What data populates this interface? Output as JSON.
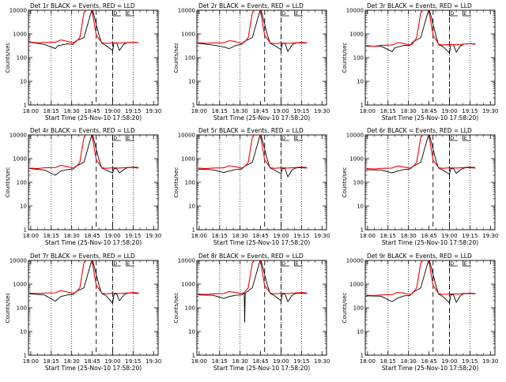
{
  "chart_data": [
    {
      "type": "line",
      "title": "Det 1r BLACK = Events, RED = LLD",
      "xlabel": "Start Time (25-Nov-10 17:58:20)",
      "ylabel": "Counts/sec",
      "yscale": "log",
      "ylim": [
        1,
        10000
      ],
      "x_ticks": [
        "18:00",
        "18:15",
        "18:30",
        "18:45",
        "19:00",
        "19:15",
        "19:30"
      ],
      "y_ticks": [
        "1",
        "10",
        "100",
        "1000",
        "10000"
      ],
      "flag_labels": [
        "D",
        "E"
      ],
      "series": [
        {
          "name": "Events",
          "color": "#000000",
          "x": [
            -1,
            10,
            18,
            20,
            27,
            31,
            33,
            39,
            45,
            50,
            52,
            55,
            60,
            61,
            63,
            65,
            68,
            70,
            72,
            75,
            79
          ],
          "y": [
            450,
            360,
            240,
            320,
            380,
            360,
            500,
            700,
            12000,
            900,
            400,
            330,
            200,
            420,
            420,
            200,
            360,
            420,
            440,
            440,
            430
          ]
        },
        {
          "name": "LLD",
          "color": "#ff0000",
          "x": [
            -1,
            5,
            10,
            18,
            22,
            26,
            31,
            33,
            36,
            39,
            42,
            45,
            48,
            52,
            55,
            60,
            65,
            70,
            75,
            79
          ],
          "y": [
            460,
            420,
            440,
            440,
            560,
            500,
            420,
            460,
            700,
            8000,
            14000,
            9000,
            900,
            430,
            400,
            420,
            410,
            430,
            450,
            430
          ]
        }
      ]
    },
    {
      "type": "line",
      "title": "Det 2r BLACK = Events, RED = LLD",
      "xlabel": "Start Time (25-Nov-10 17:58:20)",
      "ylabel": "Counts/sec",
      "yscale": "log",
      "ylim": [
        1,
        10000
      ],
      "x_ticks": [
        "18:00",
        "18:15",
        "18:30",
        "18:45",
        "19:00",
        "19:15",
        "19:30"
      ],
      "y_ticks": [
        "1",
        "10",
        "100",
        "1000",
        "10000"
      ],
      "flag_labels": [
        "D",
        "E"
      ],
      "series": [
        {
          "name": "Events",
          "color": "#000000",
          "x": [
            -1,
            10,
            18,
            22,
            27,
            31,
            33,
            39,
            45,
            50,
            52,
            55,
            60,
            61,
            63,
            65,
            68,
            70,
            72,
            75,
            79
          ],
          "y": [
            400,
            340,
            280,
            240,
            330,
            360,
            480,
            700,
            12000,
            900,
            400,
            330,
            220,
            400,
            400,
            180,
            340,
            400,
            420,
            420,
            410
          ]
        },
        {
          "name": "LLD",
          "color": "#ff0000",
          "x": [
            -1,
            5,
            10,
            18,
            22,
            26,
            31,
            33,
            36,
            39,
            42,
            45,
            48,
            52,
            55,
            60,
            65,
            70,
            75,
            79
          ],
          "y": [
            430,
            400,
            420,
            420,
            520,
            480,
            400,
            440,
            700,
            8000,
            14000,
            9000,
            900,
            420,
            390,
            410,
            400,
            420,
            440,
            420
          ]
        }
      ]
    },
    {
      "type": "line",
      "title": "Det 3r BLACK = Events, RED = LLD",
      "xlabel": "Start Time (25-Nov-10 17:58:20)",
      "ylabel": "Counts/sec",
      "yscale": "log",
      "ylim": [
        1,
        10000
      ],
      "x_ticks": [
        "18:00",
        "18:15",
        "18:30",
        "18:45",
        "19:00",
        "19:15",
        "19:30"
      ],
      "y_ticks": [
        "1",
        "10",
        "100",
        "1000",
        "10000"
      ],
      "flag_labels": [
        "D",
        "E"
      ],
      "series": [
        {
          "name": "Events",
          "color": "#000000",
          "x": [
            -1,
            10,
            18,
            20,
            27,
            31,
            33,
            39,
            45,
            50,
            52,
            55,
            60,
            61,
            63,
            65,
            68,
            70,
            72,
            75,
            79
          ],
          "y": [
            300,
            300,
            180,
            260,
            330,
            320,
            450,
            700,
            12000,
            900,
            350,
            300,
            160,
            350,
            350,
            170,
            310,
            360,
            380,
            380,
            370
          ]
        },
        {
          "name": "LLD",
          "color": "#ff0000",
          "x": [
            -1,
            5,
            10,
            18,
            22,
            26,
            31,
            33,
            36,
            39,
            42,
            45,
            48,
            52,
            55,
            60,
            65,
            70,
            75,
            79
          ],
          "y": [
            320,
            300,
            330,
            340,
            430,
            400,
            340,
            380,
            700,
            8000,
            14000,
            9000,
            900,
            370,
            340,
            360,
            350,
            370,
            390,
            380
          ]
        }
      ]
    },
    {
      "type": "line",
      "title": "Det 4r BLACK = Events, RED = LLD",
      "xlabel": "Start Time (25-Nov-10 17:58:20)",
      "ylabel": "Counts/sec",
      "yscale": "log",
      "ylim": [
        1,
        10000
      ],
      "x_ticks": [
        "18:00",
        "18:15",
        "18:30",
        "18:45",
        "19:00",
        "19:15",
        "19:30"
      ],
      "y_ticks": [
        "1",
        "10",
        "100",
        "1000",
        "10000"
      ],
      "flag_labels": [
        "D",
        "E"
      ],
      "series": [
        {
          "name": "Events",
          "color": "#000000",
          "x": [
            -1,
            10,
            18,
            22,
            27,
            31,
            33,
            39,
            45,
            50,
            52,
            55,
            60,
            61,
            63,
            65,
            68,
            70,
            72,
            75,
            79
          ],
          "y": [
            380,
            330,
            200,
            300,
            350,
            360,
            480,
            700,
            12000,
            900,
            400,
            330,
            250,
            380,
            380,
            250,
            340,
            400,
            420,
            420,
            400
          ]
        },
        {
          "name": "LLD",
          "color": "#ff0000",
          "x": [
            -1,
            5,
            10,
            18,
            22,
            26,
            31,
            33,
            36,
            39,
            42,
            45,
            48,
            52,
            55,
            60,
            65,
            70,
            75,
            79
          ],
          "y": [
            400,
            380,
            410,
            420,
            520,
            470,
            400,
            440,
            700,
            8000,
            14000,
            9000,
            900,
            420,
            390,
            410,
            400,
            420,
            440,
            420
          ]
        }
      ]
    },
    {
      "type": "line",
      "title": "Det 5r BLACK = Events, RED = LLD",
      "xlabel": "Start Time (25-Nov-10 17:58:20)",
      "ylabel": "Counts/sec",
      "yscale": "log",
      "ylim": [
        1,
        10000
      ],
      "x_ticks": [
        "18:00",
        "18:15",
        "18:30",
        "18:45",
        "19:00",
        "19:15",
        "19:30"
      ],
      "y_ticks": [
        "1",
        "10",
        "100",
        "1000",
        "10000"
      ],
      "flag_labels": [
        "D",
        "E"
      ],
      "series": [
        {
          "name": "Events",
          "color": "#000000",
          "x": [
            -1,
            10,
            18,
            22,
            27,
            31,
            33,
            39,
            45,
            50,
            52,
            55,
            60,
            61,
            63,
            65,
            68,
            70,
            72,
            75,
            79
          ],
          "y": [
            360,
            340,
            260,
            300,
            350,
            360,
            460,
            700,
            12000,
            900,
            400,
            330,
            230,
            380,
            380,
            170,
            330,
            390,
            410,
            410,
            400
          ]
        },
        {
          "name": "LLD",
          "color": "#ff0000",
          "x": [
            -1,
            5,
            10,
            18,
            22,
            26,
            31,
            33,
            36,
            39,
            42,
            45,
            48,
            52,
            55,
            60,
            65,
            70,
            75,
            79
          ],
          "y": [
            400,
            380,
            400,
            410,
            500,
            460,
            400,
            440,
            700,
            8000,
            14000,
            9000,
            900,
            420,
            390,
            410,
            400,
            420,
            440,
            420
          ]
        }
      ]
    },
    {
      "type": "line",
      "title": "Det 6r BLACK = Events, RED = LLD",
      "xlabel": "Start Time (25-Nov-10 17:58:20)",
      "ylabel": "Counts/sec",
      "yscale": "log",
      "ylim": [
        1,
        10000
      ],
      "x_ticks": [
        "18:00",
        "18:15",
        "18:30",
        "18:45",
        "19:00",
        "19:15",
        "19:30"
      ],
      "y_ticks": [
        "1",
        "10",
        "100",
        "1000",
        "10000"
      ],
      "flag_labels": [
        "D",
        "E"
      ],
      "series": [
        {
          "name": "Events",
          "color": "#000000",
          "x": [
            -1,
            10,
            18,
            22,
            27,
            31,
            33,
            39,
            45,
            50,
            52,
            55,
            60,
            61,
            63,
            65,
            68,
            70,
            72,
            75,
            79
          ],
          "y": [
            340,
            330,
            250,
            300,
            350,
            360,
            460,
            700,
            12000,
            900,
            400,
            330,
            220,
            380,
            380,
            240,
            340,
            390,
            410,
            410,
            400
          ]
        },
        {
          "name": "LLD",
          "color": "#ff0000",
          "x": [
            -1,
            5,
            10,
            18,
            22,
            26,
            31,
            33,
            36,
            39,
            42,
            45,
            48,
            52,
            55,
            60,
            65,
            70,
            75,
            79
          ],
          "y": [
            380,
            370,
            390,
            400,
            490,
            450,
            400,
            440,
            700,
            8000,
            14000,
            9000,
            900,
            420,
            390,
            410,
            400,
            420,
            440,
            420
          ]
        }
      ]
    },
    {
      "type": "line",
      "title": "Det 7r BLACK = Events, RED = LLD",
      "xlabel": "Start Time (25-Nov-10 17:58:20)",
      "ylabel": "Counts/sec",
      "yscale": "log",
      "ylim": [
        1,
        10000
      ],
      "x_ticks": [
        "18:00",
        "18:15",
        "18:30",
        "18:45",
        "19:00",
        "19:15",
        "19:30"
      ],
      "y_ticks": [
        "1",
        "10",
        "100",
        "1000",
        "10000"
      ],
      "flag_labels": [
        "D",
        "E"
      ],
      "series": [
        {
          "name": "Events",
          "color": "#000000",
          "x": [
            -1,
            10,
            18,
            22,
            27,
            31,
            33,
            39,
            45,
            50,
            52,
            55,
            60,
            61,
            63,
            65,
            68,
            70,
            72,
            75,
            79
          ],
          "y": [
            390,
            350,
            190,
            300,
            350,
            360,
            480,
            700,
            12000,
            900,
            400,
            330,
            160,
            380,
            380,
            200,
            340,
            400,
            420,
            420,
            400
          ]
        },
        {
          "name": "LLD",
          "color": "#ff0000",
          "x": [
            -1,
            5,
            10,
            18,
            22,
            26,
            31,
            33,
            36,
            39,
            42,
            45,
            48,
            52,
            55,
            60,
            65,
            70,
            75,
            79
          ],
          "y": [
            420,
            400,
            420,
            430,
            530,
            480,
            410,
            450,
            700,
            8000,
            14000,
            9000,
            900,
            420,
            390,
            410,
            400,
            420,
            440,
            420
          ]
        }
      ]
    },
    {
      "type": "line",
      "title": "Det 8r BLACK = Events, RED = LLD",
      "xlabel": "Start Time (25-Nov-10 17:58:20)",
      "ylabel": "Counts/sec",
      "yscale": "log",
      "ylim": [
        1,
        10000
      ],
      "x_ticks": [
        "18:00",
        "18:15",
        "18:30",
        "18:45",
        "19:00",
        "19:15",
        "19:30"
      ],
      "y_ticks": [
        "1",
        "10",
        "100",
        "1000",
        "10000"
      ],
      "flag_labels": [
        "D",
        "E"
      ],
      "series": [
        {
          "name": "Events",
          "color": "#000000",
          "x": [
            -1,
            10,
            18,
            22,
            27,
            31,
            33,
            33.4,
            33.8,
            39,
            45,
            50,
            52,
            55,
            60,
            61,
            63,
            65,
            68,
            70,
            72,
            75,
            79
          ],
          "y": [
            350,
            340,
            250,
            300,
            340,
            350,
            420,
            25,
            420,
            700,
            12000,
            900,
            400,
            330,
            200,
            380,
            380,
            180,
            330,
            390,
            410,
            410,
            400
          ]
        },
        {
          "name": "LLD",
          "color": "#ff0000",
          "x": [
            -1,
            5,
            10,
            18,
            22,
            26,
            31,
            33,
            36,
            39,
            42,
            45,
            48,
            52,
            55,
            60,
            65,
            70,
            75,
            79
          ],
          "y": [
            380,
            370,
            390,
            400,
            490,
            450,
            400,
            440,
            700,
            8000,
            14000,
            9000,
            900,
            420,
            390,
            410,
            400,
            420,
            440,
            420
          ]
        }
      ]
    },
    {
      "type": "line",
      "title": "Det 9r BLACK = Events, RED = LLD",
      "xlabel": "Start Time (25-Nov-10 17:58:20)",
      "ylabel": "Counts/sec",
      "yscale": "log",
      "ylim": [
        1,
        10000
      ],
      "x_ticks": [
        "18:00",
        "18:15",
        "18:30",
        "18:45",
        "19:00",
        "19:15",
        "19:30"
      ],
      "y_ticks": [
        "1",
        "10",
        "100",
        "1000",
        "10000"
      ],
      "flag_labels": [
        "D",
        "E"
      ],
      "series": [
        {
          "name": "Events",
          "color": "#000000",
          "x": [
            -1,
            10,
            18,
            22,
            27,
            31,
            33,
            39,
            45,
            50,
            52,
            55,
            60,
            61,
            63,
            65,
            68,
            70,
            72,
            75,
            79
          ],
          "y": [
            320,
            310,
            180,
            260,
            320,
            330,
            440,
            700,
            12000,
            900,
            380,
            310,
            160,
            360,
            360,
            170,
            320,
            380,
            400,
            400,
            390
          ]
        },
        {
          "name": "LLD",
          "color": "#ff0000",
          "x": [
            -1,
            5,
            10,
            18,
            22,
            26,
            31,
            33,
            36,
            39,
            42,
            45,
            48,
            52,
            55,
            60,
            65,
            70,
            75,
            79
          ],
          "y": [
            340,
            330,
            350,
            360,
            450,
            420,
            370,
            410,
            700,
            8000,
            14000,
            9000,
            900,
            400,
            370,
            390,
            380,
            400,
            420,
            400
          ]
        }
      ]
    }
  ]
}
